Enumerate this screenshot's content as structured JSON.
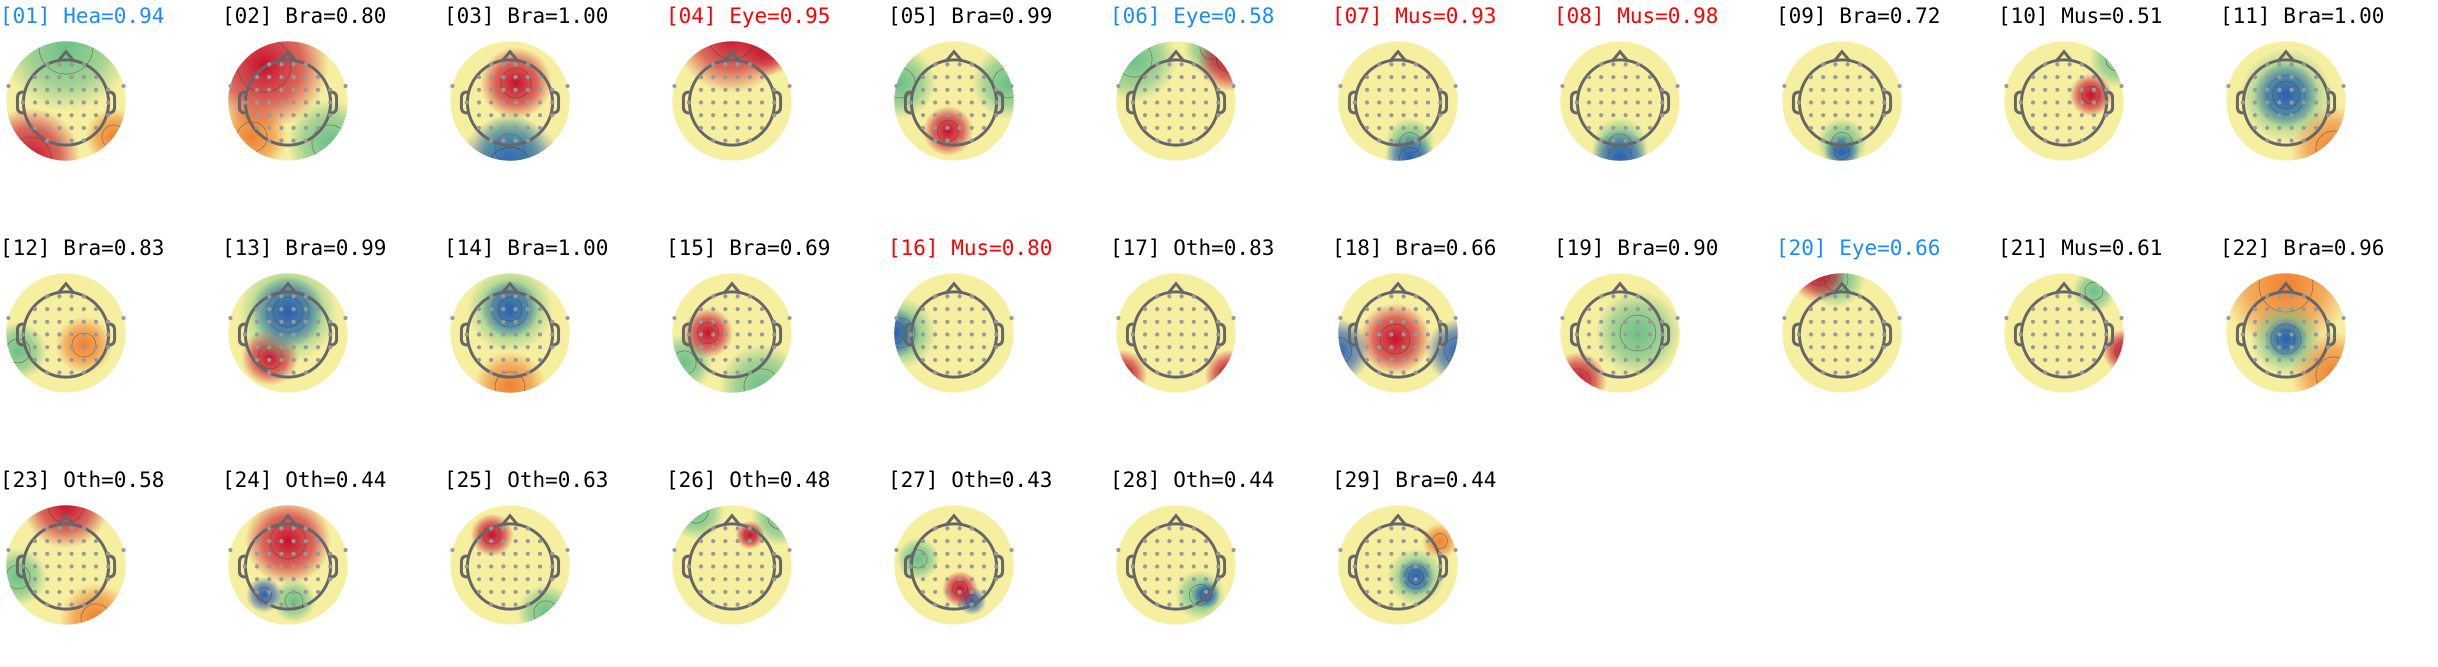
{
  "class_colors": {
    "Hea": "#1a8cff",
    "Eye_blue": "#1a8cff",
    "red": "#ff0000",
    "default": "#000000"
  },
  "chart_data": {
    "type": "heatmap",
    "components": [
      {
        "label": "[01] Hea=0.94",
        "color": "#1a8cff"
      },
      {
        "label": "[02] Bra=0.80",
        "color": "#000000"
      },
      {
        "label": "[03] Bra=1.00",
        "color": "#000000"
      },
      {
        "label": "[04] Eye=0.95",
        "color": "#ff0000"
      },
      {
        "label": "[05] Bra=0.99",
        "color": "#000000"
      },
      {
        "label": "[06] Eye=0.58",
        "color": "#1a8cff"
      },
      {
        "label": "[07] Mus=0.93",
        "color": "#ff0000"
      },
      {
        "label": "[08] Mus=0.98",
        "color": "#ff0000"
      },
      {
        "label": "[09] Bra=0.72",
        "color": "#000000"
      },
      {
        "label": "[10] Mus=0.51",
        "color": "#000000"
      },
      {
        "label": "[11] Bra=1.00",
        "color": "#000000"
      },
      {
        "label": "[12] Bra=0.83",
        "color": "#000000"
      },
      {
        "label": "[13] Bra=0.99",
        "color": "#000000"
      },
      {
        "label": "[14] Bra=1.00",
        "color": "#000000"
      },
      {
        "label": "[15] Bra=0.69",
        "color": "#000000"
      },
      {
        "label": "[16] Mus=0.80",
        "color": "#ff0000"
      },
      {
        "label": "[17] Oth=0.83",
        "color": "#000000"
      },
      {
        "label": "[18] Bra=0.66",
        "color": "#000000"
      },
      {
        "label": "[19] Bra=0.90",
        "color": "#000000"
      },
      {
        "label": "[20] Eye=0.66",
        "color": "#1a8cff"
      },
      {
        "label": "[21] Mus=0.61",
        "color": "#000000"
      },
      {
        "label": "[22] Bra=0.96",
        "color": "#000000"
      },
      {
        "label": "[23] Oth=0.58",
        "color": "#000000"
      },
      {
        "label": "[24] Oth=0.44",
        "color": "#000000"
      },
      {
        "label": "[25] Oth=0.63",
        "color": "#000000"
      },
      {
        "label": "[26] Oth=0.48",
        "color": "#000000"
      },
      {
        "label": "[27] Oth=0.43",
        "color": "#000000"
      },
      {
        "label": "[28] Oth=0.44",
        "color": "#000000"
      },
      {
        "label": "[29] Bra=0.44",
        "color": "#000000"
      }
    ]
  }
}
